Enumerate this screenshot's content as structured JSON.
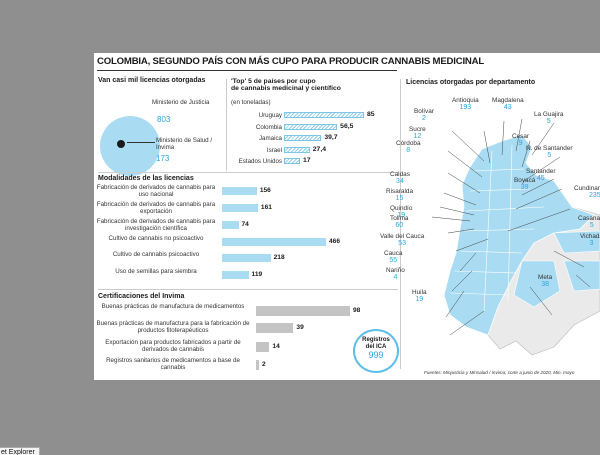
{
  "title": "COLOMBIA, SEGUNDO PAÍS CON MÁS CUPO PARA PRODUCIR CANNABIS MEDICINAL",
  "licencias": {
    "heading": "Van casi mil licencias otorgadas",
    "justicia_label": "Ministerio de Justicia",
    "justicia_value": "803",
    "salud_label": "Ministerio de Salud / Invima",
    "salud_value": "173"
  },
  "top5": {
    "heading_line1": "'Top' 5 de países por cupo",
    "heading_line2": "de cannabis medicinal y científico",
    "unit": "(en toneladas)"
  },
  "modalidades": {
    "heading": "Modalidades de las licencias"
  },
  "certificaciones": {
    "heading": "Certificaciones del Invima"
  },
  "ica": {
    "line1": "Registros",
    "line2": "del ICA",
    "value": "999"
  },
  "departamentos": {
    "heading": "Licencias otorgadas por departamento",
    "items": [
      {
        "name": "Antioquia",
        "value": "193"
      },
      {
        "name": "Magdalena",
        "value": "43"
      },
      {
        "name": "Bolívar",
        "value": "2"
      },
      {
        "name": "La Guajira",
        "value": "5"
      },
      {
        "name": "Sucre",
        "value": "12"
      },
      {
        "name": "Cesar",
        "value": "9"
      },
      {
        "name": "Córdoba",
        "value": "8"
      },
      {
        "name": "N. de Santander",
        "value": "5"
      },
      {
        "name": "Antioquia",
        "value": "193"
      },
      {
        "name": "Santander",
        "value": "45"
      },
      {
        "name": "Caldas",
        "value": "34"
      },
      {
        "name": "Boyacá",
        "value": "39"
      },
      {
        "name": "Risaralda",
        "value": "15"
      },
      {
        "name": "Cundinamarca",
        "value": "235"
      },
      {
        "name": "Quindío",
        "value": "19"
      },
      {
        "name": "Tolima",
        "value": "60"
      },
      {
        "name": "Casanare",
        "value": "5"
      },
      {
        "name": "Valle del Cauca",
        "value": "53"
      },
      {
        "name": "Vichada",
        "value": "3"
      },
      {
        "name": "Cauca",
        "value": "55"
      },
      {
        "name": "Meta",
        "value": "38"
      },
      {
        "name": "Nariño",
        "value": "4"
      },
      {
        "name": "Huila",
        "value": "19"
      }
    ]
  },
  "footer": "Fuentes: Minjusticia y Minsalud / Invima, corte a junio de 2020, Min. mayo",
  "taskbar_label": "et Explorer",
  "chart_data": [
    {
      "type": "pie",
      "title": "Van casi mil licencias otorgadas",
      "categories": [
        "Ministerio de Justicia",
        "Ministerio de Salud / Invima"
      ],
      "values": [
        803,
        173
      ],
      "colors": [
        "#a9dcf2",
        "#1a1a1a"
      ]
    },
    {
      "type": "bar",
      "title": "'Top' 5 de países por cupo de cannabis medicinal y científico",
      "ylabel": "(en toneladas)",
      "categories": [
        "Uruguay",
        "Colombia",
        "Jamaica",
        "Israel",
        "Estados Unidos"
      ],
      "values": [
        85,
        56.5,
        39.7,
        27.4,
        17
      ],
      "labels": [
        "85",
        "56,5",
        "39,7",
        "27,4",
        "17"
      ],
      "max": 85
    },
    {
      "type": "bar",
      "title": "Modalidades de las licencias",
      "categories": [
        "Fabricación de derivados de cannabis para uso nacional",
        "Fabricación de derivados de cannabis para exportación",
        "Fabricación de derivados de cannabis para investigación científica",
        "Cultivo de cannabis no psicoactivo",
        "Cultivo de cannabis psicoactivo",
        "Uso de semillas para siembra"
      ],
      "values": [
        156,
        161,
        74,
        466,
        218,
        119
      ],
      "max": 466,
      "color": "#a9dcf2"
    },
    {
      "type": "bar",
      "title": "Certificaciones del Invima",
      "categories": [
        "Buenas prácticas de manufactura de medicamentos",
        "Buenas prácticas de manufactura para la fabricación de productos fitoterapéuticos",
        "Exportación para productos fabricados a partir de derivados de cannabis",
        "Registros sanitarios de medicamentos a base de cannabis"
      ],
      "values": [
        98,
        39,
        14,
        2
      ],
      "max": 98,
      "color": "#c4c4c4"
    }
  ]
}
